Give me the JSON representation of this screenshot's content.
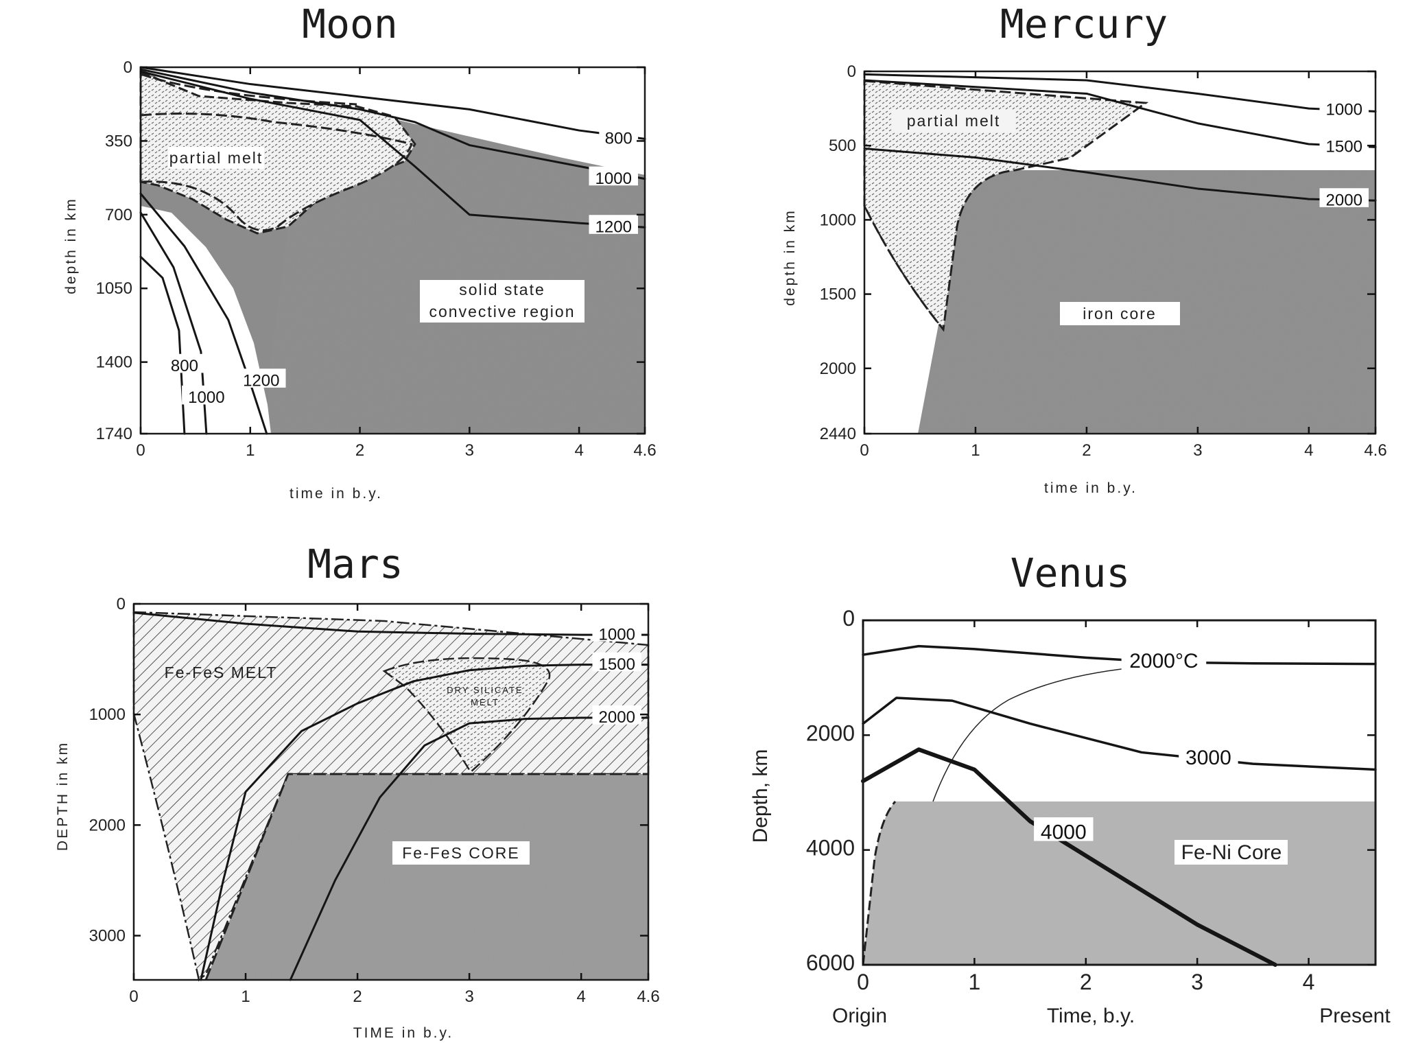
{
  "chart_data": [
    {
      "type": "line",
      "panel": "moon",
      "title": "Moon",
      "xlabel": "time in b.y.",
      "ylabel": "depth in km",
      "xlim": [
        0,
        4.6
      ],
      "ylim": [
        0,
        1740
      ],
      "y_inverted": true,
      "xticks": [
        "0",
        "1",
        "2",
        "3",
        "4",
        "4.6"
      ],
      "yticks": [
        "0",
        "350",
        "700",
        "1050",
        "1400",
        "1740"
      ],
      "region_labels": [
        "partial melt",
        "solid state",
        "convective region"
      ],
      "isotherm_labels": [
        {
          "value": "800",
          "x": 4.6,
          "y": 340
        },
        {
          "value": "1000",
          "x": 4.6,
          "y": 530
        },
        {
          "value": "1200",
          "x": 4.6,
          "y": 760
        },
        {
          "value": "800",
          "x": 0.4,
          "y": 1420
        },
        {
          "value": "1000",
          "x": 0.6,
          "y": 1570
        },
        {
          "value": "1200",
          "x": 1.1,
          "y": 1490
        }
      ],
      "series": [
        {
          "name": "800",
          "x": [
            0.0,
            1.0,
            2.0,
            3.0,
            4.0,
            4.6
          ],
          "y": [
            0,
            80,
            140,
            200,
            300,
            340
          ]
        },
        {
          "value": "1000",
          "x": [
            0.0,
            1.0,
            2.0,
            2.5,
            3.0,
            4.0,
            4.6
          ],
          "y": [
            10,
            120,
            200,
            260,
            370,
            470,
            530
          ]
        },
        {
          "name": "1200",
          "x": [
            0.0,
            1.0,
            2.0,
            2.5,
            3.0,
            4.0,
            4.6
          ],
          "y": [
            20,
            150,
            250,
            470,
            700,
            740,
            760
          ]
        },
        {
          "name": "1200",
          "x": [
            0.0,
            0.4,
            0.8,
            1.0,
            1.15
          ],
          "y": [
            600,
            850,
            1200,
            1500,
            1740
          ]
        },
        {
          "name": "1000",
          "x": [
            0.0,
            0.3,
            0.55,
            0.6
          ],
          "y": [
            690,
            950,
            1350,
            1740
          ]
        },
        {
          "name": "800",
          "x": [
            0.0,
            0.2,
            0.35,
            0.4
          ],
          "y": [
            900,
            1000,
            1250,
            1740
          ]
        }
      ]
    },
    {
      "type": "line",
      "panel": "mercury",
      "title": "Mercury",
      "xlabel": "time in b.y.",
      "ylabel": "depth in km",
      "xlim": [
        0,
        4.6
      ],
      "ylim": [
        0,
        2440
      ],
      "y_inverted": true,
      "xticks": [
        "0",
        "1",
        "2",
        "3",
        "4",
        "4.6"
      ],
      "yticks": [
        "0",
        "500",
        "1000",
        "1500",
        "2000",
        "2440"
      ],
      "region_labels": [
        "partial melt",
        "iron core"
      ],
      "isotherm_labels": [
        {
          "value": "1000",
          "x": 4.6,
          "y": 260
        },
        {
          "value": "1500",
          "x": 4.6,
          "y": 510
        },
        {
          "value": "2000",
          "x": 4.6,
          "y": 870
        }
      ],
      "series": [
        {
          "name": "1000",
          "x": [
            0.0,
            2.0,
            3.0,
            4.0,
            4.6
          ],
          "y": [
            20,
            60,
            150,
            250,
            270
          ]
        },
        {
          "name": "1500",
          "x": [
            0.0,
            2.0,
            3.0,
            4.0,
            4.6
          ],
          "y": [
            60,
            150,
            350,
            490,
            510
          ]
        },
        {
          "name": "2000",
          "x": [
            0.0,
            1.0,
            2.0,
            3.0,
            4.0,
            4.6
          ],
          "y": [
            520,
            580,
            680,
            790,
            860,
            870
          ]
        }
      ]
    },
    {
      "type": "line",
      "panel": "mars",
      "title": "Mars",
      "xlabel": "TIME in b.y.",
      "ylabel": "DEPTH in km",
      "xlim": [
        0,
        4.6
      ],
      "ylim": [
        0,
        3400
      ],
      "y_inverted": true,
      "xticks": [
        "0",
        "1",
        "2",
        "3",
        "4",
        "4.6"
      ],
      "yticks": [
        "0",
        "1000",
        "2000",
        "3000"
      ],
      "region_labels": [
        "Fe-FeS MELT",
        "DRY SILICATE",
        "MELT",
        "Fe-FeS CORE"
      ],
      "isotherm_labels": [
        {
          "value": "1000",
          "x": 4.6,
          "y": 280
        },
        {
          "value": "1500",
          "x": 4.6,
          "y": 550
        },
        {
          "value": "2000",
          "x": 4.6,
          "y": 1030
        }
      ],
      "series": [
        {
          "name": "1000",
          "x": [
            0.0,
            1.0,
            2.0,
            3.0,
            4.0,
            4.6
          ],
          "y": [
            80,
            180,
            250,
            270,
            280,
            280
          ]
        },
        {
          "name": "1500",
          "x": [
            0.6,
            0.8,
            1.0,
            1.5,
            2.0,
            2.5,
            3.0,
            3.5,
            4.0,
            4.6
          ],
          "y": [
            3400,
            2500,
            1700,
            1150,
            900,
            700,
            600,
            560,
            550,
            550
          ]
        },
        {
          "name": "2000",
          "x": [
            1.4,
            1.8,
            2.2,
            2.6,
            3.0,
            3.5,
            4.0,
            4.6
          ],
          "y": [
            3400,
            2500,
            1750,
            1280,
            1080,
            1040,
            1030,
            1030
          ]
        }
      ]
    },
    {
      "type": "line",
      "panel": "venus",
      "title": "Venus",
      "xlabel": "Time, b.y.",
      "x_extra_labels": [
        "Origin",
        "Present"
      ],
      "ylabel": "Depth, km",
      "xlim": [
        0,
        4.6
      ],
      "ylim": [
        0,
        6000
      ],
      "y_inverted": true,
      "xticks": [
        "0",
        "1",
        "2",
        "3",
        "4"
      ],
      "yticks": [
        "0",
        "2000",
        "4000",
        "6000"
      ],
      "region_labels": [
        "Fe-Ni Core"
      ],
      "isotherm_labels": [
        {
          "value": "2000°C",
          "x": 2.7,
          "y": 720
        },
        {
          "value": "3000",
          "x": 3.1,
          "y": 2400
        },
        {
          "value": "4000",
          "x": 1.8,
          "y": 3700
        }
      ],
      "series": [
        {
          "name": "2000°C",
          "x": [
            0.0,
            0.5,
            1.0,
            2.0,
            2.7,
            3.5,
            4.6
          ],
          "y": [
            600,
            450,
            500,
            650,
            730,
            750,
            760
          ]
        },
        {
          "name": "3000",
          "x": [
            0.0,
            0.3,
            0.8,
            1.5,
            2.5,
            3.5,
            4.6
          ],
          "y": [
            1800,
            1350,
            1400,
            1800,
            2300,
            2500,
            2600
          ]
        },
        {
          "name": "4000",
          "x": [
            0.0,
            0.5,
            1.0,
            1.5,
            2.5,
            3.0,
            3.7
          ],
          "y": [
            2800,
            2250,
            2600,
            3500,
            4700,
            5300,
            6000
          ]
        }
      ]
    }
  ]
}
